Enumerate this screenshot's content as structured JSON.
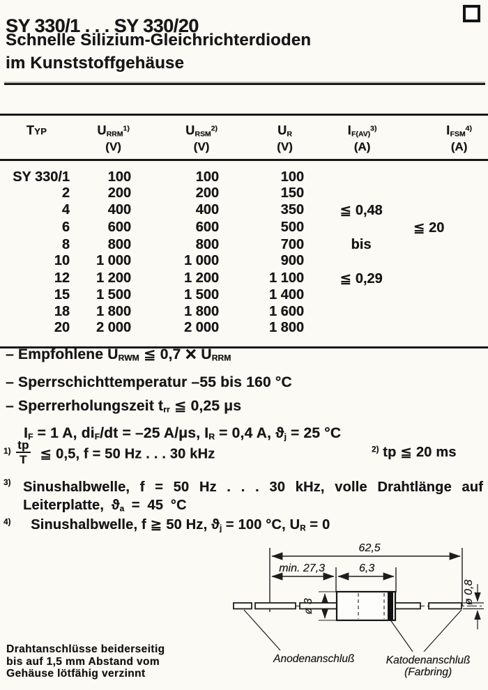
{
  "header": {
    "title": "SY 330/1 . . . SY 330/20",
    "subtitle_line1": "Schnelle Silizium-Gleichrichterdioden",
    "subtitle_line2": "im Kunststoffgehäuse"
  },
  "table": {
    "headers": [
      {
        "label": "Typ",
        "sub": "",
        "sup": "",
        "unit": ""
      },
      {
        "label": "U",
        "sub": "RRM",
        "sup": "1)",
        "unit": "(V)"
      },
      {
        "label": "U",
        "sub": "RSM",
        "sup": "2)",
        "unit": "(V)"
      },
      {
        "label": "U",
        "sub": "R",
        "sup": "",
        "unit": "(V)"
      },
      {
        "label": "I",
        "sub": "F(AV)",
        "sup": "3)",
        "unit": "(A)"
      },
      {
        "label": "I",
        "sub": "FSM",
        "sup": "4)",
        "unit": "(A)"
      }
    ],
    "rows": [
      {
        "typ": "SY 330/1",
        "urrm": "100",
        "ursm": "100",
        "ur": "100",
        "ifav": "",
        "ifsm": ""
      },
      {
        "typ": "2",
        "urrm": "200",
        "ursm": "200",
        "ur": "150",
        "ifav": "",
        "ifsm": ""
      },
      {
        "typ": "4",
        "urrm": "400",
        "ursm": "400",
        "ur": "350",
        "ifav": "≦ 0,48",
        "ifsm": ""
      },
      {
        "typ": "6",
        "urrm": "600",
        "ursm": "600",
        "ur": "500",
        "ifav": "",
        "ifsm": "≦ 20"
      },
      {
        "typ": "8",
        "urrm": "800",
        "ursm": "800",
        "ur": "700",
        "ifav": "bis",
        "ifsm": ""
      },
      {
        "typ": "10",
        "urrm": "1 000",
        "ursm": "1 000",
        "ur": "900",
        "ifav": "",
        "ifsm": ""
      },
      {
        "typ": "12",
        "urrm": "1 200",
        "ursm": "1 200",
        "ur": "1 100",
        "ifav": "≦ 0,29",
        "ifsm": ""
      },
      {
        "typ": "15",
        "urrm": "1 500",
        "ursm": "1 500",
        "ur": "1 400",
        "ifav": "",
        "ifsm": ""
      },
      {
        "typ": "18",
        "urrm": "1 800",
        "ursm": "1 800",
        "ur": "1 600",
        "ifav": "",
        "ifsm": ""
      },
      {
        "typ": "20",
        "urrm": "2 000",
        "ursm": "2 000",
        "ur": "1 800",
        "ifav": "",
        "ifsm": ""
      }
    ]
  },
  "notes": [
    {
      "indent": false,
      "segments": [
        {
          "t": "– Empfohlene U"
        },
        {
          "sub": "RWM"
        },
        {
          "t": " ≦ 0,7 "
        },
        {
          "x": "×"
        },
        {
          "t": " U"
        },
        {
          "sub": "RRM"
        }
      ]
    },
    {
      "indent": false,
      "segments": [
        {
          "t": "– Sperrschichttemperatur –55 bis 160 °C"
        }
      ]
    },
    {
      "indent": false,
      "segments": [
        {
          "t": "– Sperrerholungszeit t"
        },
        {
          "sub": "rr"
        },
        {
          "t": " ≦ 0,25 μs"
        }
      ]
    },
    {
      "indent": true,
      "segments": [
        {
          "t": "I"
        },
        {
          "sub": "F"
        },
        {
          "t": " = 1 A, di"
        },
        {
          "sub": "F"
        },
        {
          "t": "/dt = –25 A/μs, I"
        },
        {
          "sub": "R"
        },
        {
          "t": " = 0,4 A, ϑ"
        },
        {
          "sub": "j"
        },
        {
          "t": " = 25 °C"
        }
      ]
    }
  ],
  "footnotes": {
    "fn1": {
      "sup_label": "1)",
      "frac_num": "tp",
      "frac_den": "T",
      "rest": " ≦ 0,5, f = 50 Hz . . . 30 kHz"
    },
    "fn2": {
      "sup_label": "2)",
      "text": "tp ≦ 20 ms"
    },
    "fn3": {
      "sup_label": "3)",
      "segments": [
        {
          "t": "Sinushalbwelle, f = 50 Hz . . . 30 kHz, volle Drahtlänge auf Leiterplatte, ϑ"
        },
        {
          "sub": "a"
        },
        {
          "t": " = 45 °C"
        }
      ]
    },
    "fn4": {
      "sup_label": "4)",
      "segments": [
        {
          "t": "Sinushalbwelle, f ≧ 50 Hz,  ϑ"
        },
        {
          "sub": "j"
        },
        {
          "t": " = 100 °C, U"
        },
        {
          "sub": "R"
        },
        {
          "t": " = 0"
        }
      ]
    }
  },
  "diagram": {
    "dim_total": "62,5",
    "dim_lead_min": "min. 27,3",
    "dim_body": "6,3",
    "dim_body_dia": "ø 3",
    "dim_lead_dia": "ø 0,8",
    "label_anode": "Anodenanschluß",
    "label_cathode": "Katodenanschluß",
    "label_cathode_2": "(Farbring)"
  },
  "footer_note": {
    "line1": "Drahtanschlüsse beiderseitig",
    "line2": "bis auf 1,5 mm Abstand vom",
    "line3": "Gehäuse lötfähig verzinnt"
  }
}
